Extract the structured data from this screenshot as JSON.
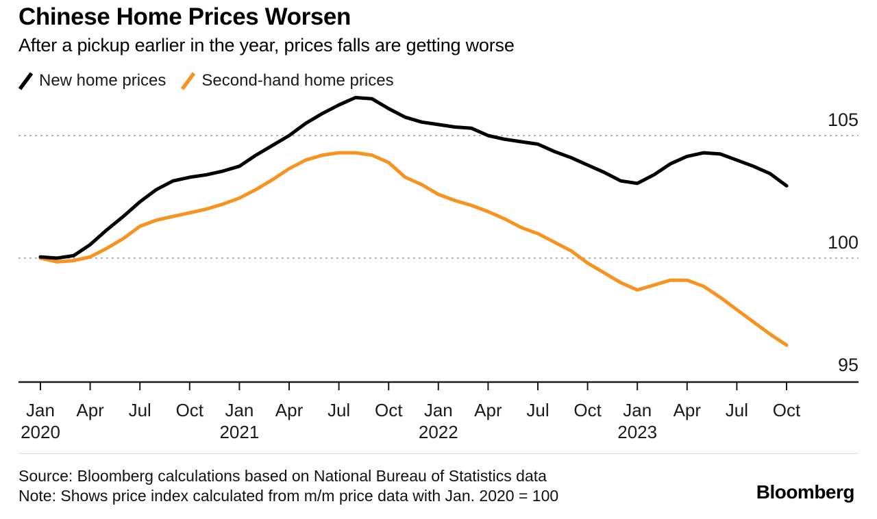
{
  "header": {
    "title": "Chinese Home Prices Worsen",
    "subtitle": "After a pickup earlier in the year, prices falls are getting worse"
  },
  "legend": [
    {
      "label": "New home prices",
      "color": "#000000",
      "icon": "line-swatch-icon"
    },
    {
      "label": "Second-hand home prices",
      "color": "#F79320",
      "icon": "line-swatch-icon"
    }
  ],
  "chart_data": {
    "type": "line",
    "title": "Chinese Home Prices Worsen",
    "xlabel": "",
    "ylabel": "",
    "legend_position": "top-left",
    "grid": "horizontal-dashed",
    "grid_color": "#b3b3b3",
    "axis_color": "#1a1a1a",
    "label_color": "#1a1a1a",
    "ylim": [
      94.6,
      107.2
    ],
    "x": [
      "Jan 2020",
      "Feb 2020",
      "Mar 2020",
      "Apr 2020",
      "May 2020",
      "Jun 2020",
      "Jul 2020",
      "Aug 2020",
      "Sep 2020",
      "Oct 2020",
      "Nov 2020",
      "Dec 2020",
      "Jan 2021",
      "Feb 2021",
      "Mar 2021",
      "Apr 2021",
      "May 2021",
      "Jun 2021",
      "Jul 2021",
      "Aug 2021",
      "Sep 2021",
      "Oct 2021",
      "Nov 2021",
      "Dec 2021",
      "Jan 2022",
      "Feb 2022",
      "Mar 2022",
      "Apr 2022",
      "May 2022",
      "Jun 2022",
      "Jul 2022",
      "Aug 2022",
      "Sep 2022",
      "Oct 2022",
      "Nov 2022",
      "Dec 2022",
      "Jan 2023",
      "Feb 2023",
      "Mar 2023",
      "Apr 2023",
      "May 2023",
      "Jun 2023",
      "Jul 2023",
      "Aug 2023",
      "Sep 2023",
      "Oct 2023"
    ],
    "series": [
      {
        "name": "Second-hand home prices",
        "color": "#F79320",
        "values": [
          100.0,
          99.85,
          99.9,
          100.05,
          100.4,
          100.8,
          101.3,
          101.55,
          101.7,
          101.85,
          102.0,
          102.2,
          102.45,
          102.8,
          103.2,
          103.65,
          104.0,
          104.2,
          104.3,
          104.3,
          104.2,
          103.9,
          103.3,
          103.0,
          102.6,
          102.35,
          102.15,
          101.9,
          101.6,
          101.25,
          101.0,
          100.65,
          100.3,
          99.8,
          99.4,
          99.0,
          98.7,
          98.9,
          99.1,
          99.1,
          98.85,
          98.4,
          97.9,
          97.4,
          96.9,
          96.45
        ]
      },
      {
        "name": "New home prices",
        "color": "#000000",
        "values": [
          100.05,
          100.0,
          100.1,
          100.55,
          101.15,
          101.7,
          102.3,
          102.8,
          103.15,
          103.3,
          103.4,
          103.55,
          103.75,
          104.2,
          104.6,
          105.0,
          105.5,
          105.9,
          106.25,
          106.55,
          106.5,
          106.1,
          105.75,
          105.55,
          105.45,
          105.35,
          105.3,
          105.0,
          104.85,
          104.75,
          104.65,
          104.35,
          104.1,
          103.8,
          103.5,
          103.15,
          103.05,
          103.4,
          103.85,
          104.15,
          104.3,
          104.25,
          104.0,
          103.75,
          103.45,
          102.95
        ]
      }
    ],
    "y_ticks": [
      {
        "value": 105,
        "gridline": true
      },
      {
        "value": 100,
        "gridline": true
      },
      {
        "value": 95,
        "gridline": false
      }
    ],
    "x_ticks": [
      {
        "index": 0,
        "label": "Jan",
        "year": "2020"
      },
      {
        "index": 3,
        "label": "Apr"
      },
      {
        "index": 6,
        "label": "Jul"
      },
      {
        "index": 9,
        "label": "Oct"
      },
      {
        "index": 12,
        "label": "Jan",
        "year": "2021"
      },
      {
        "index": 15,
        "label": "Apr"
      },
      {
        "index": 18,
        "label": "Jul"
      },
      {
        "index": 21,
        "label": "Oct"
      },
      {
        "index": 24,
        "label": "Jan",
        "year": "2022"
      },
      {
        "index": 27,
        "label": "Apr"
      },
      {
        "index": 30,
        "label": "Jul"
      },
      {
        "index": 33,
        "label": "Oct"
      },
      {
        "index": 36,
        "label": "Jan",
        "year": "2023"
      },
      {
        "index": 39,
        "label": "Apr"
      },
      {
        "index": 42,
        "label": "Jul"
      },
      {
        "index": 45,
        "label": "Oct"
      }
    ]
  },
  "footer": {
    "source": "Source: Bloomberg calculations based on National Bureau of Statistics data",
    "note": "Note: Shows price index calculated from m/m price data with Jan. 2020 = 100",
    "brand": "Bloomberg"
  }
}
